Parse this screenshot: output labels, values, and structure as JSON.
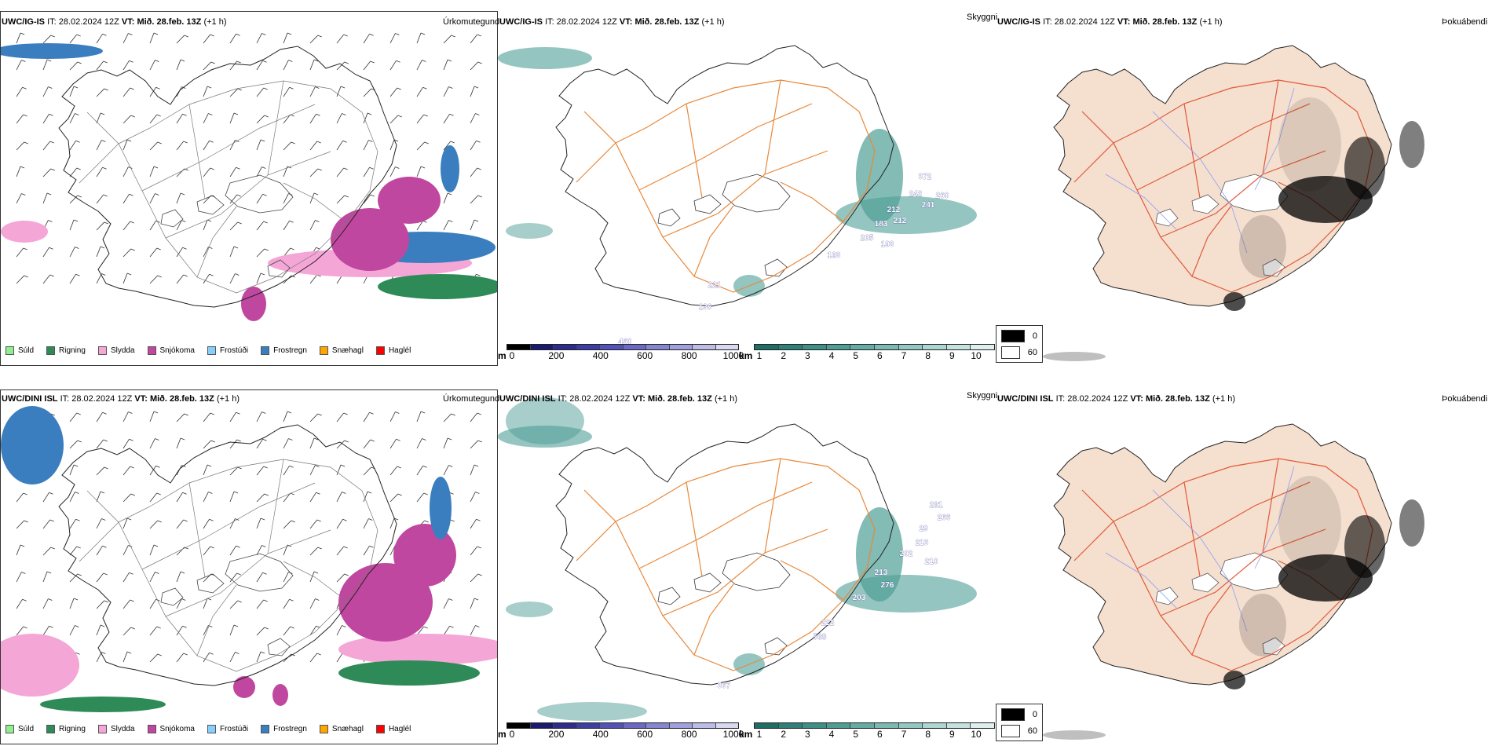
{
  "rows": [
    {
      "model": "UWC/IG-IS",
      "it_label": "IT:",
      "it_value": "28.02.2024 12Z",
      "vt_label": "VT:",
      "vt_value": "Mið. 28.feb. 13Z",
      "lead": "(+1 h)"
    },
    {
      "model": "UWC/DINI ISL",
      "it_label": "IT:",
      "it_value": "28.02.2024 12Z",
      "vt_label": "VT:",
      "vt_value": "Mið. 28.feb. 13Z",
      "lead": "(+1 h)"
    }
  ],
  "panel_titles": {
    "precip_type": "Úrkomutegund",
    "visibility": "Skyggni",
    "fog": "Þokuábendi"
  },
  "precip_legend": [
    {
      "label": "Súld",
      "color": "#90ee90"
    },
    {
      "label": "Rigning",
      "color": "#2e8b57"
    },
    {
      "label": "Slydda",
      "color": "#f4a6d7"
    },
    {
      "label": "Snjókoma",
      "color": "#c0479f"
    },
    {
      "label": "Frostúði",
      "color": "#87cefa"
    },
    {
      "label": "Frostregn",
      "color": "#3a7ebf"
    },
    {
      "label": "Snæhagl",
      "color": "#ffa500"
    },
    {
      "label": "Haglél",
      "color": "#ff0000"
    }
  ],
  "vis_m_scale": {
    "unit": "m",
    "ticks": [
      "0",
      "200",
      "400",
      "600",
      "800",
      "1000"
    ],
    "colors": [
      "#000000",
      "#1a1a6e",
      "#2c2c8c",
      "#3d3da6",
      "#5252b8",
      "#6a6ac4",
      "#8585d0",
      "#a0a0dc",
      "#bcbce6",
      "#d8d8f0"
    ]
  },
  "vis_km_scale": {
    "unit": "km",
    "ticks": [
      "1",
      "2",
      "3",
      "4",
      "5",
      "6",
      "7",
      "8",
      "9",
      "10"
    ],
    "colors": [
      "#1f6e66",
      "#2e8078",
      "#3d8f87",
      "#4f9e96",
      "#64aca5",
      "#7bbab3",
      "#93c8c2",
      "#abd6d1",
      "#c4e3df",
      "#ddf0ee"
    ]
  },
  "fog_scale": [
    {
      "label": "0",
      "color": "#000000"
    },
    {
      "label": "60",
      "color": "#ffffff"
    }
  ],
  "vis_values": [
    [
      "372",
      "242",
      "241",
      "260",
      "212",
      "183",
      "205",
      "212",
      "193",
      "183",
      "221",
      "136",
      "460"
    ],
    [
      "281",
      "266",
      "29",
      "213",
      "202",
      "210",
      "213",
      "276",
      "203",
      "222",
      "588",
      "367"
    ]
  ],
  "colors": {
    "coast": "#222222",
    "roads": "#e8883a",
    "fog_land": "#f5dfcf",
    "fog_roads": "#e05a3a",
    "fog_rivers": "#8e9ef0"
  }
}
